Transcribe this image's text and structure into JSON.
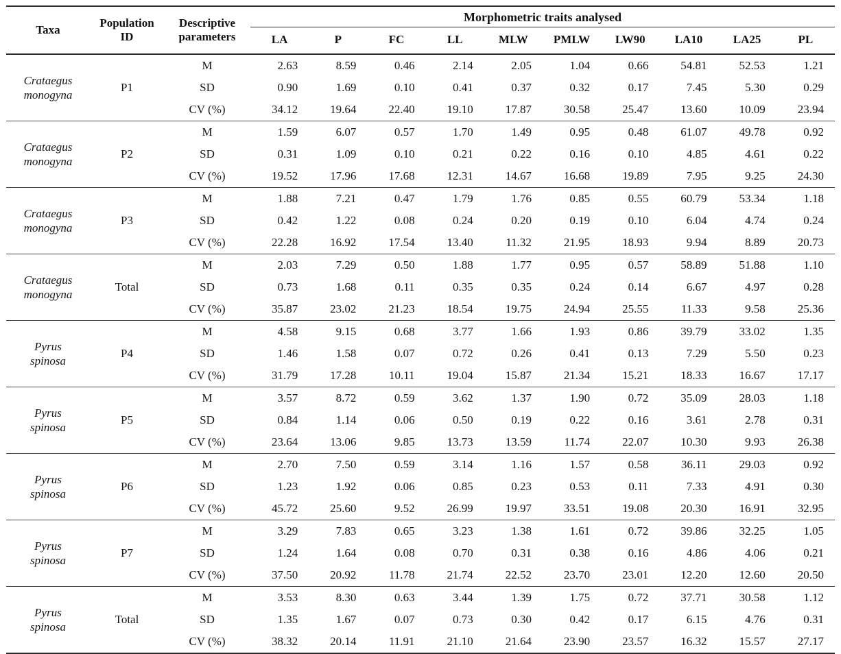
{
  "page": {
    "background": "#ffffff",
    "text_color": "#161616",
    "rule_color": "#2c2c2c"
  },
  "table": {
    "headers": {
      "taxa": "Taxa",
      "population_id": "Population\nID",
      "descriptive_parameters": "Descriptive\nparameters",
      "traits_group": "Morphometric traits analysed",
      "traits": [
        "LA",
        "P",
        "FC",
        "LL",
        "MLW",
        "PMLW",
        "LW90",
        "LA10",
        "LA25",
        "PL"
      ]
    },
    "row_labels": [
      "M",
      "SD",
      "CV (%)"
    ],
    "groups": [
      {
        "taxa": "Crataegus\nmonogyna",
        "population": "P1",
        "rows": [
          {
            "label": "M",
            "values": [
              "2.63",
              "8.59",
              "0.46",
              "2.14",
              "2.05",
              "1.04",
              "0.66",
              "54.81",
              "52.53",
              "1.21"
            ]
          },
          {
            "label": "SD",
            "values": [
              "0.90",
              "1.69",
              "0.10",
              "0.41",
              "0.37",
              "0.32",
              "0.17",
              "7.45",
              "5.30",
              "0.29"
            ]
          },
          {
            "label": "CV (%)",
            "values": [
              "34.12",
              "19.64",
              "22.40",
              "19.10",
              "17.87",
              "30.58",
              "25.47",
              "13.60",
              "10.09",
              "23.94"
            ]
          }
        ]
      },
      {
        "taxa": "Crataegus\nmonogyna",
        "population": "P2",
        "rows": [
          {
            "label": "M",
            "values": [
              "1.59",
              "6.07",
              "0.57",
              "1.70",
              "1.49",
              "0.95",
              "0.48",
              "61.07",
              "49.78",
              "0.92"
            ]
          },
          {
            "label": "SD",
            "values": [
              "0.31",
              "1.09",
              "0.10",
              "0.21",
              "0.22",
              "0.16",
              "0.10",
              "4.85",
              "4.61",
              "0.22"
            ]
          },
          {
            "label": "CV (%)",
            "values": [
              "19.52",
              "17.96",
              "17.68",
              "12.31",
              "14.67",
              "16.68",
              "19.89",
              "7.95",
              "9.25",
              "24.30"
            ]
          }
        ]
      },
      {
        "taxa": "Crataegus\nmonogyna",
        "population": "P3",
        "rows": [
          {
            "label": "M",
            "values": [
              "1.88",
              "7.21",
              "0.47",
              "1.79",
              "1.76",
              "0.85",
              "0.55",
              "60.79",
              "53.34",
              "1.18"
            ]
          },
          {
            "label": "SD",
            "values": [
              "0.42",
              "1.22",
              "0.08",
              "0.24",
              "0.20",
              "0.19",
              "0.10",
              "6.04",
              "4.74",
              "0.24"
            ]
          },
          {
            "label": "CV (%)",
            "values": [
              "22.28",
              "16.92",
              "17.54",
              "13.40",
              "11.32",
              "21.95",
              "18.93",
              "9.94",
              "8.89",
              "20.73"
            ]
          }
        ]
      },
      {
        "taxa": "Crataegus\nmonogyna",
        "population": "Total",
        "rows": [
          {
            "label": "M",
            "values": [
              "2.03",
              "7.29",
              "0.50",
              "1.88",
              "1.77",
              "0.95",
              "0.57",
              "58.89",
              "51.88",
              "1.10"
            ]
          },
          {
            "label": "SD",
            "values": [
              "0.73",
              "1.68",
              "0.11",
              "0.35",
              "0.35",
              "0.24",
              "0.14",
              "6.67",
              "4.97",
              "0.28"
            ]
          },
          {
            "label": "CV (%)",
            "values": [
              "35.87",
              "23.02",
              "21.23",
              "18.54",
              "19.75",
              "24.94",
              "25.55",
              "11.33",
              "9.58",
              "25.36"
            ]
          }
        ]
      },
      {
        "taxa": "Pyrus\nspinosa",
        "population": "P4",
        "rows": [
          {
            "label": "M",
            "values": [
              "4.58",
              "9.15",
              "0.68",
              "3.77",
              "1.66",
              "1.93",
              "0.86",
              "39.79",
              "33.02",
              "1.35"
            ]
          },
          {
            "label": "SD",
            "values": [
              "1.46",
              "1.58",
              "0.07",
              "0.72",
              "0.26",
              "0.41",
              "0.13",
              "7.29",
              "5.50",
              "0.23"
            ]
          },
          {
            "label": "CV (%)",
            "values": [
              "31.79",
              "17.28",
              "10.11",
              "19.04",
              "15.87",
              "21.34",
              "15.21",
              "18.33",
              "16.67",
              "17.17"
            ]
          }
        ]
      },
      {
        "taxa": "Pyrus\nspinosa",
        "population": "P5",
        "rows": [
          {
            "label": "M",
            "values": [
              "3.57",
              "8.72",
              "0.59",
              "3.62",
              "1.37",
              "1.90",
              "0.72",
              "35.09",
              "28.03",
              "1.18"
            ]
          },
          {
            "label": "SD",
            "values": [
              "0.84",
              "1.14",
              "0.06",
              "0.50",
              "0.19",
              "0.22",
              "0.16",
              "3.61",
              "2.78",
              "0.31"
            ]
          },
          {
            "label": "CV (%)",
            "values": [
              "23.64",
              "13.06",
              "9.85",
              "13.73",
              "13.59",
              "11.74",
              "22.07",
              "10.30",
              "9.93",
              "26.38"
            ]
          }
        ]
      },
      {
        "taxa": "Pyrus\nspinosa",
        "population": "P6",
        "rows": [
          {
            "label": "M",
            "values": [
              "2.70",
              "7.50",
              "0.59",
              "3.14",
              "1.16",
              "1.57",
              "0.58",
              "36.11",
              "29.03",
              "0.92"
            ]
          },
          {
            "label": "SD",
            "values": [
              "1.23",
              "1.92",
              "0.06",
              "0.85",
              "0.23",
              "0.53",
              "0.11",
              "7.33",
              "4.91",
              "0.30"
            ]
          },
          {
            "label": "CV (%)",
            "values": [
              "45.72",
              "25.60",
              "9.52",
              "26.99",
              "19.97",
              "33.51",
              "19.08",
              "20.30",
              "16.91",
              "32.95"
            ]
          }
        ]
      },
      {
        "taxa": "Pyrus\nspinosa",
        "population": "P7",
        "rows": [
          {
            "label": "M",
            "values": [
              "3.29",
              "7.83",
              "0.65",
              "3.23",
              "1.38",
              "1.61",
              "0.72",
              "39.86",
              "32.25",
              "1.05"
            ]
          },
          {
            "label": "SD",
            "values": [
              "1.24",
              "1.64",
              "0.08",
              "0.70",
              "0.31",
              "0.38",
              "0.16",
              "4.86",
              "4.06",
              "0.21"
            ]
          },
          {
            "label": "CV (%)",
            "values": [
              "37.50",
              "20.92",
              "11.78",
              "21.74",
              "22.52",
              "23.70",
              "23.01",
              "12.20",
              "12.60",
              "20.50"
            ]
          }
        ]
      },
      {
        "taxa": "Pyrus\nspinosa",
        "population": "Total",
        "rows": [
          {
            "label": "M",
            "values": [
              "3.53",
              "8.30",
              "0.63",
              "3.44",
              "1.39",
              "1.75",
              "0.72",
              "37.71",
              "30.58",
              "1.12"
            ]
          },
          {
            "label": "SD",
            "values": [
              "1.35",
              "1.67",
              "0.07",
              "0.73",
              "0.30",
              "0.42",
              "0.17",
              "6.15",
              "4.76",
              "0.31"
            ]
          },
          {
            "label": "CV (%)",
            "values": [
              "38.32",
              "20.14",
              "11.91",
              "21.10",
              "21.64",
              "23.90",
              "23.57",
              "16.32",
              "15.57",
              "27.17"
            ]
          }
        ]
      }
    ]
  }
}
